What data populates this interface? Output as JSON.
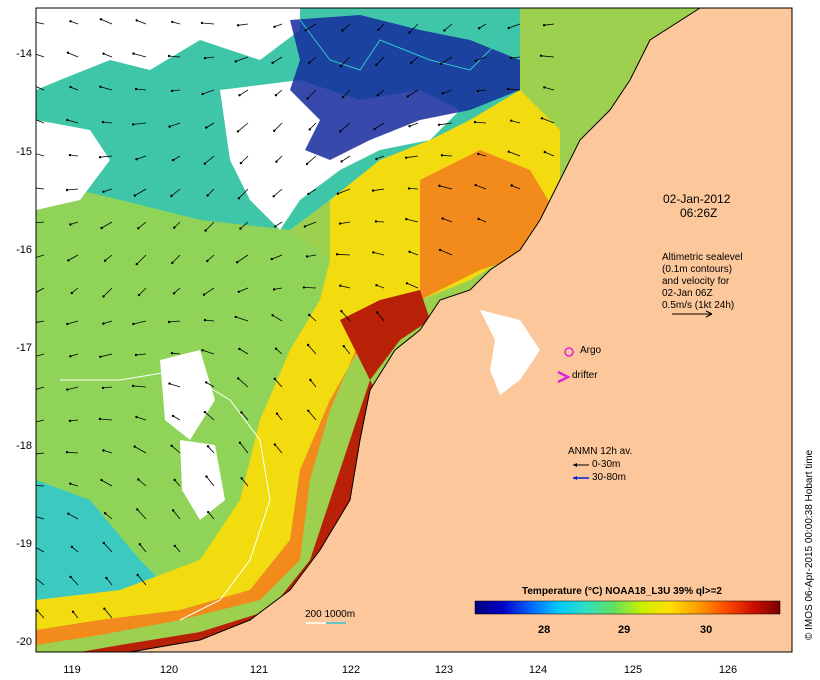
{
  "map": {
    "date": "02-Jan-2012",
    "time": "06:26Z",
    "altimetry_text": [
      "Altimetric sealevel",
      "(0.1m contours)",
      "and velocity for",
      "02-Jan 06Z",
      "0.5m/s (1kt 24h)"
    ],
    "argo_label": "Argo",
    "drifter_label": "drifter",
    "anmn_title": "ANMN 12h av.",
    "anmn_items": [
      "0-30m",
      "30-80m"
    ],
    "isobath_label": "200 1000m",
    "credit": "© IMOS 06-Apr-2015 00:00:38 Hobart time",
    "colorbar": {
      "title": "Temperature (°C) NOAA18_L3U 39% ql>=2",
      "ticks": [
        "28",
        "29",
        "30"
      ],
      "colors": [
        "#00007a",
        "#0000c8",
        "#0064ff",
        "#00c8ff",
        "#30e0c0",
        "#60e060",
        "#c8f000",
        "#ffe000",
        "#ffa000",
        "#ff5000",
        "#d01000",
        "#7a0000"
      ]
    },
    "lat_ticks": [
      "-14",
      "-15",
      "-16",
      "-17",
      "-18",
      "-19",
      "-20"
    ],
    "lon_ticks": [
      "119",
      "120",
      "121",
      "122",
      "123",
      "124",
      "125",
      "126"
    ],
    "colors": {
      "land": "#fcc79a",
      "cloud": "#ffffff"
    }
  }
}
